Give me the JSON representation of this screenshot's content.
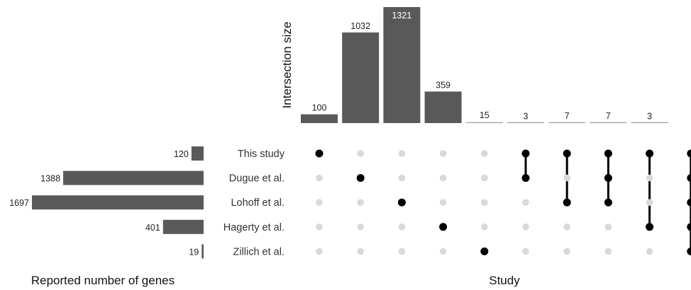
{
  "chart_data": {
    "type": "upset",
    "sets": [
      "This study",
      "Dugue et al.",
      "Lohoff et al.",
      "Hagerty et al.",
      "Zillich et al."
    ],
    "set_sizes": [
      120,
      1388,
      1697,
      401,
      19
    ],
    "intersections": [
      {
        "sets": [
          0
        ],
        "size": 100
      },
      {
        "sets": [
          1
        ],
        "size": 1032
      },
      {
        "sets": [
          2
        ],
        "size": 1321
      },
      {
        "sets": [
          3
        ],
        "size": 359
      },
      {
        "sets": [
          4
        ],
        "size": 15
      },
      {
        "sets": [
          0,
          1
        ],
        "size": 3
      },
      {
        "sets": [
          0,
          2
        ],
        "size": 7
      },
      {
        "sets": [
          0,
          1,
          2
        ],
        "size": 7
      },
      {
        "sets": [
          0,
          3
        ],
        "size": 3
      },
      {
        "sets": [
          0,
          1,
          2,
          3,
          4
        ],
        "size": null
      }
    ],
    "ylabel": "Intersection size",
    "xlabel": "Study",
    "set_size_label": "Reported number of genes",
    "colors": {
      "bar": "#595959",
      "dot_active": "#000000",
      "dot_inactive": "#d9d9d9",
      "small_bar": "#999999"
    }
  }
}
